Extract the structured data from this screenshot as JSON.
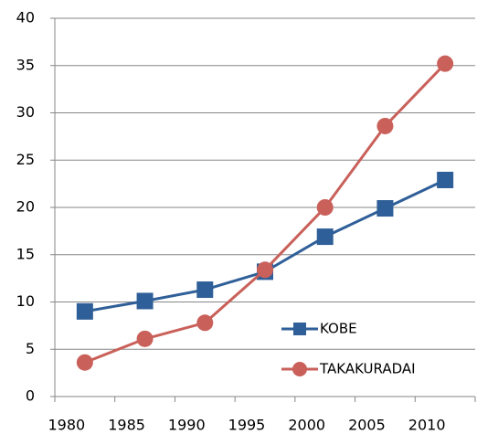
{
  "chart_data": {
    "type": "line",
    "categories": [
      "1980",
      "1985",
      "1990",
      "1995",
      "2000",
      "2005",
      "2010"
    ],
    "series": [
      {
        "name": "KOBE",
        "color": "#2f5f98",
        "marker": "square",
        "values": [
          9.0,
          10.1,
          11.3,
          13.2,
          16.9,
          19.9,
          22.9
        ]
      },
      {
        "name": "TAKAKURADAI",
        "color": "#c9605a",
        "marker": "circle",
        "values": [
          3.6,
          6.1,
          7.8,
          13.4,
          20.0,
          28.6,
          35.2
        ]
      }
    ],
    "ylim": [
      0,
      40
    ],
    "yticks": [
      0,
      5,
      10,
      15,
      20,
      25,
      30,
      35,
      40
    ],
    "grid": true,
    "legend": "lower-right"
  }
}
